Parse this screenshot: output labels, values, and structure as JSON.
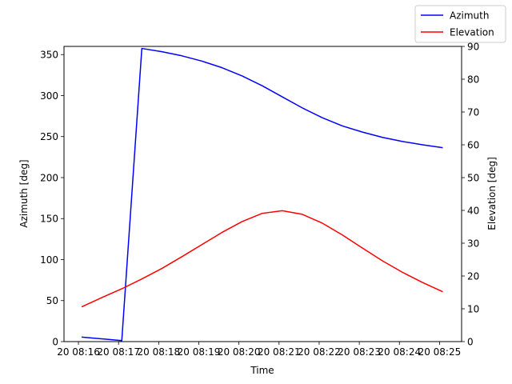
{
  "chart_data": {
    "type": "line",
    "xlabel": "Time",
    "ylabel_left": "Azimuth [deg]",
    "ylabel_right": "Elevation [deg]",
    "x_tick_labels": [
      "20 08:16",
      "20 08:17",
      "20 08:18",
      "20 08:19",
      "20 08:20",
      "20 08:21",
      "20 08:22",
      "20 08:23",
      "20 08:24",
      "20 08:25"
    ],
    "x_range_minutes": [
      -0.36,
      9.55
    ],
    "ylim_left": [
      0,
      360
    ],
    "ylim_right": [
      0,
      90
    ],
    "y_ticks_left": [
      0,
      50,
      100,
      150,
      200,
      250,
      300,
      350
    ],
    "y_ticks_right": [
      0,
      10,
      20,
      30,
      40,
      50,
      60,
      70,
      80,
      90
    ],
    "legend_position": "top-right",
    "grid": false,
    "series": [
      {
        "name": "Azimuth",
        "axis": "left",
        "color": "#0000ff",
        "x": [
          0.08,
          1.08,
          1.58,
          2.08,
          2.58,
          3.08,
          3.58,
          4.08,
          4.58,
          5.08,
          5.58,
          6.08,
          6.58,
          7.08,
          7.58,
          8.08,
          8.58,
          9.08
        ],
        "y": [
          5.5,
          1.2,
          357.5,
          353.5,
          348.5,
          342,
          334,
          324,
          312,
          298.5,
          285,
          273,
          263,
          255.5,
          249,
          244,
          240,
          236.5
        ]
      },
      {
        "name": "Elevation",
        "axis": "right",
        "color": "#ff0000",
        "x": [
          0.08,
          0.58,
          1.08,
          1.58,
          2.08,
          2.58,
          3.08,
          3.58,
          4.08,
          4.58,
          5.08,
          5.58,
          6.08,
          6.58,
          7.08,
          7.58,
          8.08,
          8.58,
          9.08
        ],
        "y": [
          10.6,
          13.4,
          16.1,
          19.1,
          22.3,
          25.9,
          29.6,
          33.3,
          36.6,
          39.1,
          39.9,
          38.8,
          36.1,
          32.5,
          28.5,
          24.6,
          21.1,
          18.0,
          15.2
        ]
      }
    ]
  }
}
